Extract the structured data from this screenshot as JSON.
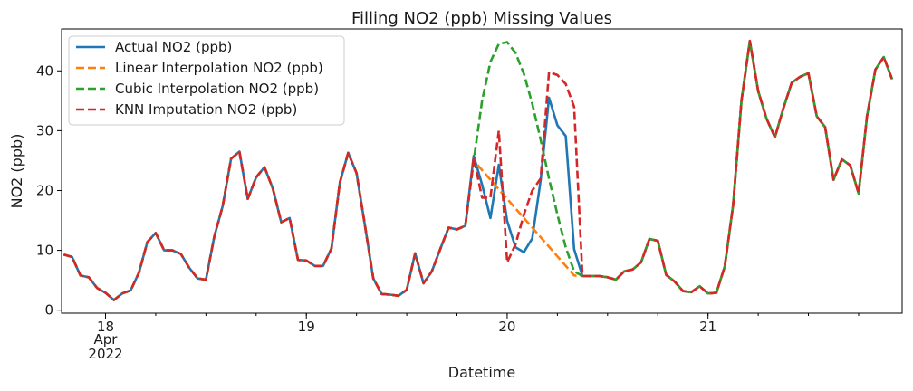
{
  "chart_data": {
    "type": "line",
    "title": "Filling NO2 (ppb) Missing Values",
    "xlabel": "Datetime",
    "ylabel": "NO2 (ppb)",
    "ylim": [
      -0.5,
      47
    ],
    "yticks": [
      0,
      10,
      20,
      30,
      40
    ],
    "xlim": [
      -0.25,
      100.2
    ],
    "major_ticks": [
      {
        "x": 5,
        "label": "18",
        "sub1": "Apr",
        "sub2": "2022"
      },
      {
        "x": 29,
        "label": "19"
      },
      {
        "x": 53,
        "label": "20"
      },
      {
        "x": 77,
        "label": "21"
      }
    ],
    "legend_position": "upper-left",
    "grid": false,
    "series": [
      {
        "name": "Actual NO2 (ppb)",
        "color": "#1f77b4",
        "dash": "solid",
        "values": [
          9.3,
          8.9,
          5.8,
          5.5,
          3.7,
          2.9,
          1.7,
          2.8,
          3.3,
          6.3,
          11.4,
          12.9,
          10.0,
          10.0,
          9.4,
          7.1,
          5.3,
          5.1,
          12.3,
          17.4,
          25.3,
          26.5,
          18.6,
          22.2,
          23.9,
          20.3,
          14.7,
          15.4,
          8.4,
          8.3,
          7.4,
          7.4,
          10.3,
          21.3,
          26.3,
          22.9,
          14.2,
          5.3,
          2.7,
          2.6,
          2.4,
          3.4,
          9.5,
          4.5,
          6.5,
          10.2,
          13.8,
          13.5,
          14.1,
          25.8,
          21.0,
          15.4,
          24.3,
          14.9,
          10.5,
          9.7,
          12.0,
          21.7,
          35.5,
          30.9,
          29.1,
          10.2,
          5.7,
          5.7,
          5.7,
          5.5,
          5.1,
          6.5,
          6.8,
          8.0,
          11.9,
          11.6,
          5.9,
          4.8,
          3.2,
          3.0,
          4.0,
          2.8,
          2.9,
          7.3,
          17.5,
          35.0,
          45.0,
          36.6,
          32.0,
          28.9,
          33.7,
          38.0,
          39.0,
          39.6,
          32.4,
          30.6,
          21.8,
          25.2,
          24.2,
          19.5,
          32.4,
          40.2,
          42.3,
          38.6
        ]
      },
      {
        "name": "Linear Interpolation NO2 (ppb)",
        "color": "#ff7f0e",
        "dash": "dashed",
        "values": [
          9.3,
          8.9,
          5.8,
          5.5,
          3.7,
          2.9,
          1.7,
          2.8,
          3.3,
          6.3,
          11.4,
          12.9,
          10.0,
          10.0,
          9.4,
          7.1,
          5.3,
          5.1,
          12.3,
          17.4,
          25.3,
          26.5,
          18.6,
          22.2,
          23.9,
          20.3,
          14.7,
          15.4,
          8.4,
          8.3,
          7.4,
          7.4,
          10.3,
          21.3,
          26.3,
          22.9,
          14.2,
          5.3,
          2.7,
          2.6,
          2.4,
          3.4,
          9.5,
          4.5,
          6.5,
          10.2,
          13.8,
          13.5,
          14.1,
          25.0,
          23.4,
          21.8,
          20.2,
          18.6,
          17.0,
          15.4,
          13.8,
          12.2,
          10.6,
          9.0,
          7.4,
          5.8,
          5.7,
          5.7,
          5.7,
          5.5,
          5.1,
          6.5,
          6.8,
          8.0,
          11.9,
          11.6,
          5.9,
          4.8,
          3.2,
          3.0,
          4.0,
          2.8,
          2.9,
          7.3,
          17.5,
          35.0,
          45.0,
          36.6,
          32.0,
          28.9,
          33.7,
          38.0,
          39.0,
          39.6,
          32.4,
          30.6,
          21.8,
          25.2,
          24.2,
          19.5,
          32.4,
          40.2,
          42.3,
          38.6
        ]
      },
      {
        "name": "Cubic Interpolation NO2 (ppb)",
        "color": "#2ca02c",
        "dash": "dashed",
        "values": [
          9.3,
          8.9,
          5.8,
          5.5,
          3.7,
          2.9,
          1.7,
          2.8,
          3.3,
          6.3,
          11.4,
          12.9,
          10.0,
          10.0,
          9.4,
          7.1,
          5.3,
          5.1,
          12.3,
          17.4,
          25.3,
          26.5,
          18.6,
          22.2,
          23.9,
          20.3,
          14.7,
          15.4,
          8.4,
          8.3,
          7.4,
          7.4,
          10.3,
          21.3,
          26.3,
          22.9,
          14.2,
          5.3,
          2.7,
          2.6,
          2.4,
          3.4,
          9.5,
          4.5,
          6.5,
          10.2,
          13.8,
          13.5,
          14.1,
          25.0,
          35.0,
          41.5,
          44.5,
          44.8,
          43.0,
          39.5,
          34.5,
          28.5,
          22.0,
          16.0,
          10.5,
          6.5,
          5.7,
          5.7,
          5.7,
          5.5,
          5.1,
          6.5,
          6.8,
          8.0,
          11.9,
          11.6,
          5.9,
          4.8,
          3.2,
          3.0,
          4.0,
          2.8,
          2.9,
          7.3,
          17.5,
          35.0,
          45.0,
          36.6,
          32.0,
          28.9,
          33.7,
          38.0,
          39.0,
          39.6,
          32.4,
          30.6,
          21.8,
          25.2,
          24.2,
          19.5,
          32.4,
          40.2,
          42.3,
          38.6
        ]
      },
      {
        "name": "KNN Imputation NO2 (ppb)",
        "color": "#d62728",
        "dash": "dashed",
        "values": [
          9.3,
          8.9,
          5.8,
          5.5,
          3.7,
          2.9,
          1.7,
          2.8,
          3.3,
          6.3,
          11.4,
          12.9,
          10.0,
          10.0,
          9.4,
          7.1,
          5.3,
          5.1,
          12.3,
          17.4,
          25.3,
          26.5,
          18.6,
          22.2,
          23.9,
          20.3,
          14.7,
          15.4,
          8.4,
          8.3,
          7.4,
          7.4,
          10.3,
          21.3,
          26.3,
          22.9,
          14.2,
          5.3,
          2.7,
          2.6,
          2.4,
          3.4,
          9.5,
          4.5,
          6.5,
          10.2,
          13.8,
          13.5,
          14.1,
          25.5,
          18.8,
          18.8,
          30.0,
          8.0,
          11.0,
          16.0,
          20.0,
          22.0,
          39.8,
          39.3,
          37.8,
          34.0,
          5.7,
          5.7,
          5.7,
          5.5,
          5.1,
          6.5,
          6.8,
          8.0,
          11.9,
          11.6,
          5.9,
          4.8,
          3.2,
          3.0,
          4.0,
          2.8,
          2.9,
          7.3,
          17.5,
          35.0,
          45.0,
          36.6,
          32.0,
          28.9,
          33.7,
          38.0,
          39.0,
          39.6,
          32.4,
          30.6,
          21.8,
          25.2,
          24.2,
          19.5,
          32.4,
          40.2,
          42.3,
          38.6
        ]
      }
    ]
  }
}
